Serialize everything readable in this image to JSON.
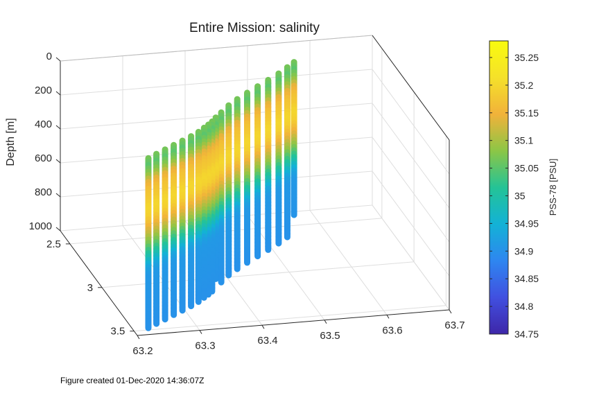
{
  "chart_data": {
    "type": "scatter",
    "title": "Entire Mission: salinity",
    "xlabel": "",
    "ylabel": "",
    "zlabel": "Depth [m]",
    "x_ticks": [
      "63.2",
      "63.3",
      "63.4",
      "63.5",
      "63.6",
      "63.7"
    ],
    "xlim": [
      63.2,
      63.7
    ],
    "y_ticks": [
      "2.5",
      "3",
      "3.5"
    ],
    "ylim": [
      2.35,
      3.55
    ],
    "z_ticks": [
      "0",
      "200",
      "400",
      "600",
      "800",
      "1000"
    ],
    "zlim": [
      0,
      1000
    ],
    "z_reversed": true,
    "grid": true,
    "colorbar": {
      "label": "PSS-78 [PSU]",
      "ticks": [
        "34.75",
        "34.8",
        "34.85",
        "34.9",
        "34.95",
        "35",
        "35.05",
        "35.1",
        "35.15",
        "35.2",
        "35.25"
      ],
      "range": [
        34.75,
        35.28
      ],
      "colormap": "parula"
    },
    "profiles": [
      {
        "lon": 63.225,
        "lat": 3.48,
        "max_depth": 1000
      },
      {
        "lon": 63.242,
        "lat": 3.44,
        "max_depth": 1000
      },
      {
        "lon": 63.26,
        "lat": 3.4,
        "max_depth": 1000
      },
      {
        "lon": 63.278,
        "lat": 3.36,
        "max_depth": 1000
      },
      {
        "lon": 63.296,
        "lat": 3.32,
        "max_depth": 1000
      },
      {
        "lon": 63.314,
        "lat": 3.28,
        "max_depth": 1000
      },
      {
        "lon": 63.33,
        "lat": 3.24,
        "max_depth": 1000
      },
      {
        "lon": 63.343,
        "lat": 3.2,
        "max_depth": 1000
      },
      {
        "lon": 63.353,
        "lat": 3.17,
        "max_depth": 1000
      },
      {
        "lon": 63.362,
        "lat": 3.14,
        "max_depth": 1000
      },
      {
        "lon": 63.372,
        "lat": 3.1,
        "max_depth": 950
      },
      {
        "lon": 63.386,
        "lat": 3.05,
        "max_depth": 1000
      },
      {
        "lon": 63.405,
        "lat": 2.98,
        "max_depth": 1000
      },
      {
        "lon": 63.425,
        "lat": 2.92,
        "max_depth": 1000
      },
      {
        "lon": 63.447,
        "lat": 2.86,
        "max_depth": 1000
      },
      {
        "lon": 63.47,
        "lat": 2.8,
        "max_depth": 1000
      },
      {
        "lon": 63.493,
        "lat": 2.74,
        "max_depth": 1000
      },
      {
        "lon": 63.516,
        "lat": 2.68,
        "max_depth": 1000
      },
      {
        "lon": 63.536,
        "lat": 2.62,
        "max_depth": 1000
      },
      {
        "lon": 63.552,
        "lat": 2.57,
        "max_depth": 900
      }
    ],
    "salinity_profile": {
      "depths": [
        0,
        50,
        100,
        150,
        200,
        250,
        300,
        350,
        400,
        450,
        500,
        550,
        600,
        650,
        700,
        1000
      ],
      "psu": [
        35.07,
        35.05,
        35.08,
        35.14,
        35.17,
        35.18,
        35.2,
        35.19,
        35.16,
        35.12,
        35.08,
        35.03,
        34.98,
        34.93,
        34.91,
        34.9
      ]
    },
    "colormap_stops": [
      "#3e26a8",
      "#4150e0",
      "#2e86f0",
      "#13b2d6",
      "#24c396",
      "#8cc646",
      "#f1b23a",
      "#f5e12a",
      "#f9fb0e"
    ]
  },
  "footer": "Figure created 01-Dec-2020 14:36:07Z"
}
